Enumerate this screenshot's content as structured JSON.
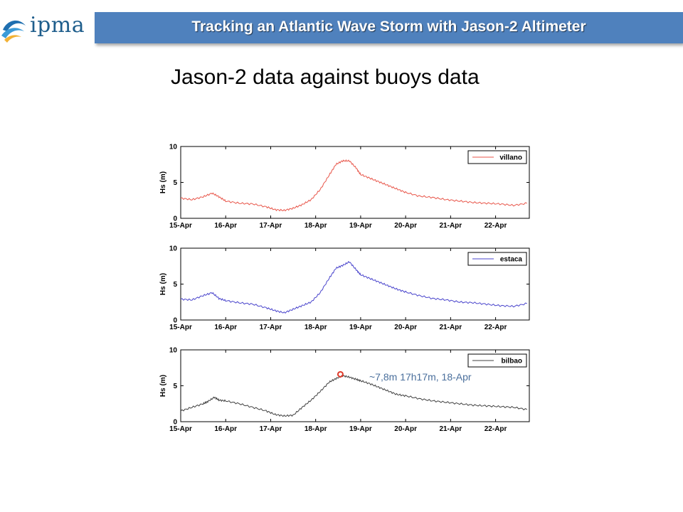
{
  "logo": {
    "text": "ipma"
  },
  "banner": {
    "title": "Tracking an Atlantic Wave Storm with Jason-2 Altimeter"
  },
  "subtitle": "Jason-2 data against buoys data",
  "annotation": {
    "text": "~7,8m 17h17m, 18-Apr",
    "marker_color": "#e03a2a",
    "text_color": "#4a6f9c"
  },
  "chart_data": [
    {
      "type": "line",
      "ylabel": "Hs (m)",
      "ylim": [
        0,
        10
      ],
      "yticks": [
        "0",
        "5",
        "10"
      ],
      "xlim": [
        "15-Apr",
        "22-Apr-18h"
      ],
      "xticks": [
        "15-Apr",
        "16-Apr",
        "17-Apr",
        "18-Apr",
        "19-Apr",
        "20-Apr",
        "21-Apr",
        "22-Apr"
      ],
      "legend": "top-right",
      "series": [
        {
          "name": "villano",
          "color": "#e8564a",
          "x": [
            0,
            0.25,
            0.5,
            0.7,
            0.85,
            1.0,
            1.3,
            1.6,
            1.9,
            2.1,
            2.3,
            2.5,
            2.7,
            2.9,
            3.1,
            3.3,
            3.45,
            3.6,
            3.75,
            3.9,
            4.0,
            4.2,
            4.4,
            4.6,
            4.8,
            5.0,
            5.3,
            5.6,
            5.9,
            6.2,
            6.5,
            6.8,
            7.1,
            7.4,
            7.7
          ],
          "y": [
            2.8,
            2.6,
            3.0,
            3.5,
            3.0,
            2.4,
            2.1,
            2.0,
            1.6,
            1.2,
            1.1,
            1.4,
            1.9,
            2.6,
            4.0,
            6.0,
            7.5,
            8.0,
            8.0,
            7.0,
            6.1,
            5.6,
            5.1,
            4.6,
            4.1,
            3.6,
            3.1,
            2.9,
            2.6,
            2.4,
            2.2,
            2.1,
            2.0,
            1.8,
            2.1
          ]
        }
      ]
    },
    {
      "type": "line",
      "ylabel": "Hs (m)",
      "ylim": [
        0,
        10
      ],
      "yticks": [
        "0",
        "5",
        "10"
      ],
      "xlim": [
        "15-Apr",
        "22-Apr-18h"
      ],
      "xticks": [
        "15-Apr",
        "16-Apr",
        "17-Apr",
        "18-Apr",
        "19-Apr",
        "20-Apr",
        "21-Apr",
        "22-Apr"
      ],
      "legend": "top-right",
      "series": [
        {
          "name": "estaca",
          "color": "#4a45cc",
          "x": [
            0,
            0.25,
            0.5,
            0.7,
            0.85,
            1.0,
            1.3,
            1.6,
            1.9,
            2.1,
            2.3,
            2.5,
            2.7,
            2.9,
            3.1,
            3.3,
            3.45,
            3.6,
            3.75,
            3.9,
            4.0,
            4.2,
            4.4,
            4.6,
            4.8,
            5.0,
            5.3,
            5.6,
            5.9,
            6.2,
            6.5,
            6.8,
            7.1,
            7.4,
            7.7
          ],
          "y": [
            2.9,
            2.8,
            3.4,
            3.8,
            3.0,
            2.7,
            2.4,
            2.2,
            1.7,
            1.3,
            1.0,
            1.5,
            2.0,
            2.5,
            3.8,
            5.8,
            7.2,
            7.6,
            8.1,
            7.0,
            6.3,
            5.8,
            5.3,
            4.8,
            4.3,
            3.9,
            3.4,
            3.0,
            2.8,
            2.5,
            2.4,
            2.2,
            2.0,
            1.9,
            2.3
          ]
        }
      ]
    },
    {
      "type": "line",
      "ylabel": "Hs (m)",
      "ylim": [
        0,
        10
      ],
      "yticks": [
        "0",
        "5",
        "10"
      ],
      "xlim": [
        "15-Apr",
        "22-Apr-18h"
      ],
      "xticks": [
        "15-Apr",
        "16-Apr",
        "17-Apr",
        "18-Apr",
        "19-Apr",
        "20-Apr",
        "21-Apr",
        "22-Apr"
      ],
      "legend": "top-right",
      "series": [
        {
          "name": "bilbao",
          "color": "#404040",
          "x": [
            0,
            0.25,
            0.5,
            0.6,
            0.75,
            0.85,
            1.0,
            1.3,
            1.6,
            1.9,
            2.1,
            2.3,
            2.5,
            2.7,
            2.9,
            3.1,
            3.3,
            3.45,
            3.6,
            3.75,
            3.9,
            4.0,
            4.2,
            4.4,
            4.6,
            4.8,
            5.0,
            5.3,
            5.6,
            5.9,
            6.2,
            6.5,
            6.8,
            7.1,
            7.4,
            7.7
          ],
          "y": [
            1.5,
            2.0,
            2.5,
            2.8,
            3.4,
            3.0,
            2.9,
            2.5,
            2.0,
            1.5,
            1.0,
            0.8,
            0.9,
            2.0,
            3.0,
            4.2,
            5.5,
            6.0,
            6.4,
            6.2,
            5.9,
            5.7,
            5.3,
            4.8,
            4.3,
            3.8,
            3.6,
            3.2,
            2.9,
            2.7,
            2.5,
            2.3,
            2.2,
            2.1,
            2.0,
            1.7
          ]
        }
      ],
      "marker": {
        "x": 3.55,
        "y": 6.6
      }
    }
  ]
}
